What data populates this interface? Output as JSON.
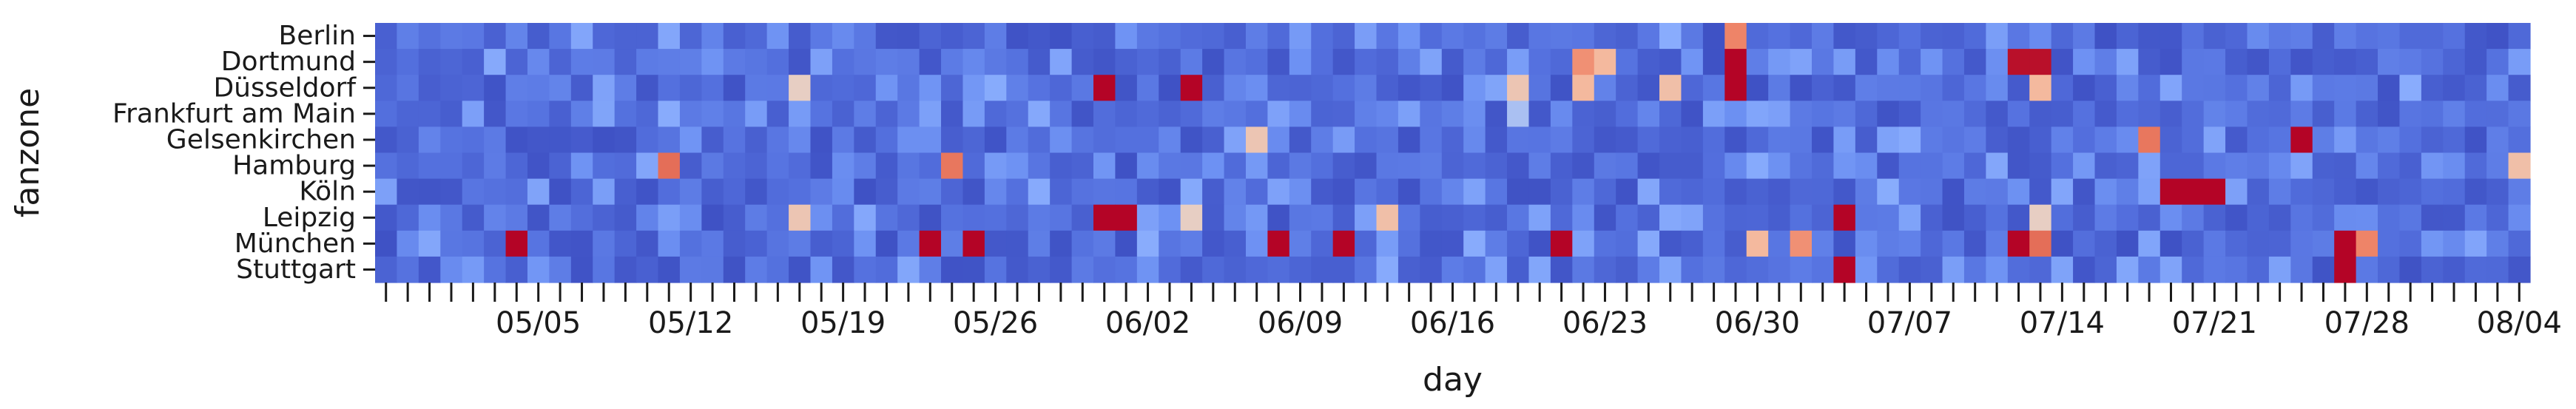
{
  "chart_data": {
    "type": "heatmap",
    "xlabel": "day",
    "ylabel": "fanzone",
    "rows": [
      "Berlin",
      "Dortmund",
      "Düsseldorf",
      "Frankfurt am Main",
      "Gelsenkirchen",
      "Hamburg",
      "Köln",
      "Leipzig",
      "München",
      "Stuttgart"
    ],
    "start_date": "2024-04-28",
    "n_days": 99,
    "x_tick_labels": [
      "05/05",
      "05/12",
      "05/19",
      "05/26",
      "06/02",
      "06/09",
      "06/16",
      "06/23",
      "06/30",
      "07/07",
      "07/14",
      "07/21",
      "07/28",
      "08/04"
    ],
    "x_tick_day_index": [
      7,
      14,
      21,
      28,
      35,
      42,
      49,
      56,
      63,
      70,
      77,
      84,
      91,
      98
    ],
    "colormap": "coolwarm",
    "color_scale": "relative intensity 0 (blue) to 1 (red)",
    "colorbar": false,
    "low_color": "#3b4cc0",
    "mid_color": "#dddddd",
    "high_color": "#b40426",
    "hot_cells": [
      {
        "row": "Berlin",
        "day": 62,
        "value": 0.75
      },
      {
        "row": "Dortmund",
        "day": 55,
        "value": 0.72
      },
      {
        "row": "Dortmund",
        "day": 56,
        "value": 0.62
      },
      {
        "row": "Dortmund",
        "day": 62,
        "value": 1.0
      },
      {
        "row": "Dortmund",
        "day": 75,
        "value": 0.98
      },
      {
        "row": "Dortmund",
        "day": 76,
        "value": 0.98
      },
      {
        "row": "Düsseldorf",
        "day": 19,
        "value": 0.55
      },
      {
        "row": "Düsseldorf",
        "day": 33,
        "value": 1.0
      },
      {
        "row": "Düsseldorf",
        "day": 37,
        "value": 1.0
      },
      {
        "row": "Düsseldorf",
        "day": 52,
        "value": 0.58
      },
      {
        "row": "Düsseldorf",
        "day": 55,
        "value": 0.62
      },
      {
        "row": "Düsseldorf",
        "day": 59,
        "value": 0.6
      },
      {
        "row": "Düsseldorf",
        "day": 62,
        "value": 1.0
      },
      {
        "row": "Düsseldorf",
        "day": 76,
        "value": 0.62
      },
      {
        "row": "Frankfurt am Main",
        "day": 52,
        "value": 0.42
      },
      {
        "row": "Gelsenkirchen",
        "day": 40,
        "value": 0.58
      },
      {
        "row": "Gelsenkirchen",
        "day": 81,
        "value": 0.78
      },
      {
        "row": "Gelsenkirchen",
        "day": 88,
        "value": 1.0
      },
      {
        "row": "Hamburg",
        "day": 13,
        "value": 0.8
      },
      {
        "row": "Hamburg",
        "day": 26,
        "value": 0.78
      },
      {
        "row": "Hamburg",
        "day": 98,
        "value": 0.6
      },
      {
        "row": "Köln",
        "day": 82,
        "value": 1.0
      },
      {
        "row": "Köln",
        "day": 83,
        "value": 1.0
      },
      {
        "row": "Köln",
        "day": 84,
        "value": 1.0
      },
      {
        "row": "Leipzig",
        "day": 19,
        "value": 0.58
      },
      {
        "row": "Leipzig",
        "day": 33,
        "value": 1.0
      },
      {
        "row": "Leipzig",
        "day": 34,
        "value": 1.0
      },
      {
        "row": "Leipzig",
        "day": 37,
        "value": 0.55
      },
      {
        "row": "Leipzig",
        "day": 46,
        "value": 0.6
      },
      {
        "row": "Leipzig",
        "day": 67,
        "value": 1.0
      },
      {
        "row": "Leipzig",
        "day": 76,
        "value": 0.55
      },
      {
        "row": "München",
        "day": 6,
        "value": 1.0
      },
      {
        "row": "München",
        "day": 25,
        "value": 1.0
      },
      {
        "row": "München",
        "day": 27,
        "value": 1.0
      },
      {
        "row": "München",
        "day": 41,
        "value": 1.0
      },
      {
        "row": "München",
        "day": 44,
        "value": 1.0
      },
      {
        "row": "München",
        "day": 54,
        "value": 1.0
      },
      {
        "row": "München",
        "day": 63,
        "value": 0.62
      },
      {
        "row": "München",
        "day": 65,
        "value": 0.72
      },
      {
        "row": "München",
        "day": 75,
        "value": 1.0
      },
      {
        "row": "München",
        "day": 76,
        "value": 0.8
      },
      {
        "row": "München",
        "day": 90,
        "value": 1.0
      },
      {
        "row": "München",
        "day": 91,
        "value": 0.75
      },
      {
        "row": "Stuttgart",
        "day": 67,
        "value": 1.0
      },
      {
        "row": "Stuttgart",
        "day": 90,
        "value": 1.0
      }
    ]
  }
}
